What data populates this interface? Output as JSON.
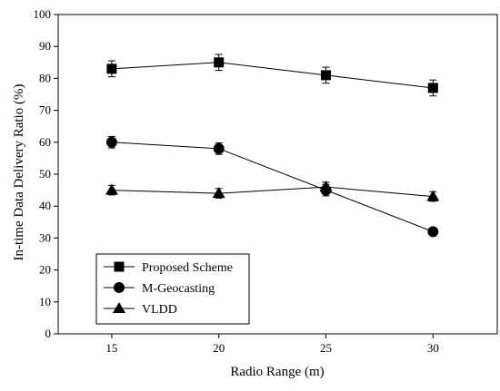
{
  "chart_data": {
    "type": "line",
    "title": "",
    "xlabel": "Radio Range (m)",
    "ylabel": "In-time Data Delivery Ratio (%)",
    "x": [
      15,
      20,
      25,
      30
    ],
    "xlim": [
      12.5,
      33
    ],
    "ylim": [
      0,
      100
    ],
    "xticks": [
      15,
      20,
      25,
      30
    ],
    "yticks": [
      0,
      10,
      20,
      30,
      40,
      50,
      60,
      70,
      80,
      90,
      100
    ],
    "grid": false,
    "legend_position": "bottom-left",
    "series": [
      {
        "name": "Proposed Scheme",
        "marker": "square",
        "values": [
          83,
          85,
          81,
          77
        ],
        "errors": [
          2.5,
          2.5,
          2.5,
          2.5
        ]
      },
      {
        "name": "M-Geocasting",
        "marker": "circle",
        "values": [
          60,
          58,
          45,
          32
        ],
        "errors": [
          1.8,
          1.8,
          1.8,
          0
        ]
      },
      {
        "name": "VLDD",
        "marker": "triangle",
        "values": [
          45,
          44,
          46,
          43
        ],
        "errors": [
          1.5,
          1.5,
          1.5,
          1.5
        ]
      }
    ]
  }
}
